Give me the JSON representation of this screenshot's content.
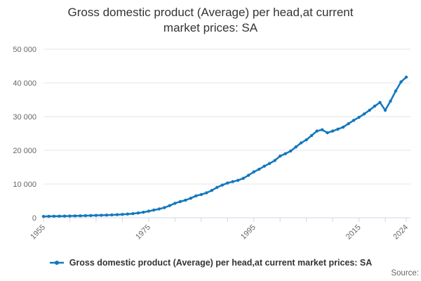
{
  "title": {
    "text": "Gross domestic product (Average) per head,at current market prices: SA",
    "line1": "Gross domestic product (Average) per head,at current",
    "line2": "market prices: SA"
  },
  "legend": {
    "label": "Gross domestic product (Average) per head,at current market prices: SA",
    "marker": "line-with-dot"
  },
  "footer": {
    "source_label": "Source:"
  },
  "colors": {
    "series": "#1278bd",
    "gridline": "#e6e6e6",
    "axis_line": "#ccd6eb",
    "tick": "#ccd6eb",
    "axis_label": "#666666",
    "title_text": "#333333",
    "legend_text": "#333333",
    "source_text": "#666666",
    "background": "#ffffff"
  },
  "chart_data": {
    "type": "line",
    "title": "Gross domestic product (Average) per head,at current market prices: SA",
    "series_name": "Gross domestic product (Average) per head,at current market prices: SA",
    "xlabel": "",
    "ylabel": "",
    "ylim": [
      0,
      50000
    ],
    "yticks": [
      0,
      10000,
      20000,
      30000,
      40000,
      50000
    ],
    "ytick_labels": [
      "0",
      "10 000",
      "20 000",
      "30 000",
      "40 000",
      "50 000"
    ],
    "xticks": [
      1955,
      1960,
      1965,
      1970,
      1975,
      1980,
      1985,
      1990,
      1995,
      2000,
      2005,
      2010,
      2015,
      2020,
      2024
    ],
    "labeled_xticks": [
      1955,
      1975,
      1995,
      2015,
      2024
    ],
    "grid": "horizontal",
    "markers": true,
    "legend_position": "bottom",
    "x": [
      1955,
      1956,
      1957,
      1958,
      1959,
      1960,
      1961,
      1962,
      1963,
      1964,
      1965,
      1966,
      1967,
      1968,
      1969,
      1970,
      1971,
      1972,
      1973,
      1974,
      1975,
      1976,
      1977,
      1978,
      1979,
      1980,
      1981,
      1982,
      1983,
      1984,
      1985,
      1986,
      1987,
      1988,
      1989,
      1990,
      1991,
      1992,
      1993,
      1994,
      1995,
      1996,
      1997,
      1998,
      1999,
      2000,
      2001,
      2002,
      2003,
      2004,
      2005,
      2006,
      2007,
      2008,
      2009,
      2010,
      2011,
      2012,
      2013,
      2014,
      2015,
      2016,
      2017,
      2018,
      2019,
      2020,
      2021,
      2022,
      2023,
      2024
    ],
    "values": [
      400,
      430,
      455,
      475,
      495,
      520,
      555,
      580,
      615,
      660,
      700,
      745,
      785,
      845,
      915,
      1000,
      1100,
      1230,
      1410,
      1640,
      1950,
      2290,
      2600,
      3000,
      3600,
      4300,
      4800,
      5200,
      5800,
      6500,
      6900,
      7400,
      8100,
      9000,
      9700,
      10300,
      10700,
      11100,
      11700,
      12600,
      13600,
      14400,
      15300,
      16100,
      17000,
      18300,
      19000,
      19800,
      21000,
      22200,
      23100,
      24400,
      25700,
      26100,
      25200,
      25700,
      26300,
      26900,
      27900,
      28900,
      29800,
      30800,
      31900,
      33100,
      34200,
      31900,
      34600,
      37600,
      40300,
      41700
    ]
  }
}
